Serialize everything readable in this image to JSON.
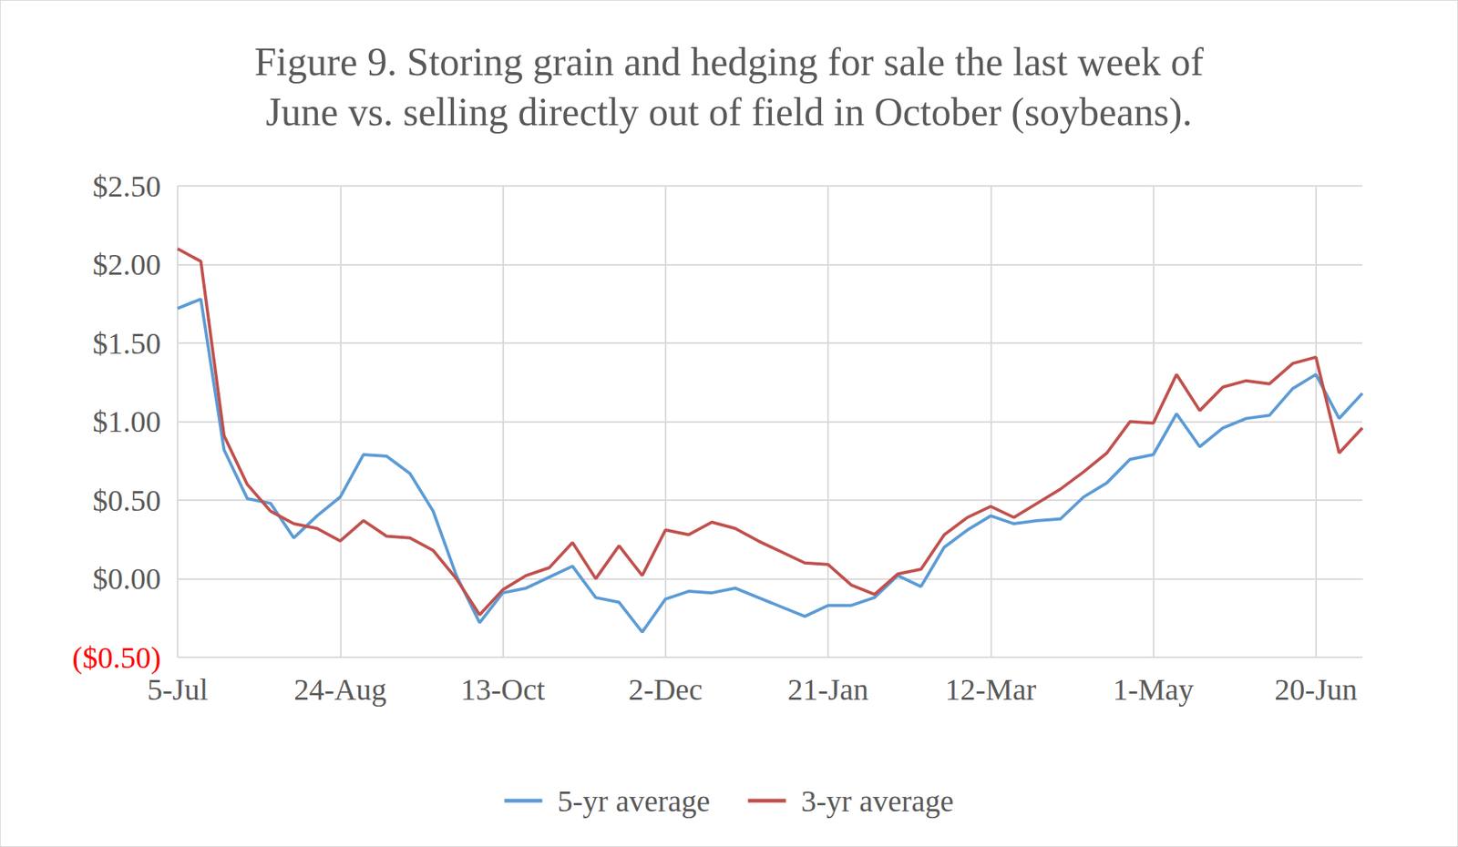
{
  "chart_data": {
    "type": "line",
    "title": "Figure 9. Storing grain and hedging for sale the last week of\nJune vs. selling directly out of field in October (soybeans).",
    "categories": [
      "5-Jul",
      null,
      null,
      null,
      null,
      null,
      null,
      "24-Aug",
      null,
      null,
      null,
      null,
      null,
      null,
      "13-Oct",
      null,
      null,
      null,
      null,
      null,
      null,
      "2-Dec",
      null,
      null,
      null,
      null,
      null,
      null,
      "21-Jan",
      null,
      null,
      null,
      null,
      null,
      null,
      "12-Mar",
      null,
      null,
      null,
      null,
      null,
      null,
      "1-May",
      null,
      null,
      null,
      null,
      null,
      null,
      "20-Jun",
      null,
      null
    ],
    "series": [
      {
        "name": "5-yr average",
        "color": "#5b9bd5",
        "values": [
          1.72,
          1.78,
          0.82,
          0.51,
          0.48,
          0.26,
          0.4,
          0.52,
          0.79,
          0.78,
          0.67,
          0.43,
          0.02,
          -0.28,
          -0.09,
          -0.06,
          0.01,
          0.08,
          -0.12,
          -0.15,
          -0.34,
          -0.13,
          -0.08,
          -0.09,
          -0.06,
          -0.12,
          -0.18,
          -0.24,
          -0.17,
          -0.17,
          -0.12,
          0.02,
          -0.05,
          0.2,
          0.31,
          0.4,
          0.35,
          0.37,
          0.38,
          0.52,
          0.61,
          0.76,
          0.79,
          1.05,
          0.84,
          0.96,
          1.02,
          1.04,
          1.21,
          1.3,
          1.02,
          1.18
        ]
      },
      {
        "name": "3-yr average",
        "color": "#c0504d",
        "values": [
          2.1,
          2.02,
          0.91,
          0.6,
          0.43,
          0.35,
          0.32,
          0.24,
          0.37,
          0.27,
          0.26,
          0.18,
          0.0,
          -0.23,
          -0.07,
          0.02,
          0.07,
          0.23,
          0.0,
          0.21,
          0.02,
          0.31,
          0.28,
          0.36,
          0.32,
          0.24,
          0.17,
          0.1,
          0.09,
          -0.04,
          -0.1,
          0.03,
          0.06,
          0.28,
          0.39,
          0.46,
          0.39,
          0.48,
          0.57,
          0.68,
          0.8,
          1.0,
          0.99,
          1.3,
          1.07,
          1.22,
          1.26,
          1.24,
          1.37,
          1.41,
          0.8,
          0.96
        ]
      }
    ],
    "ylim": [
      -0.5,
      2.5
    ],
    "yticks": [
      {
        "value": -0.5,
        "label": "($0.50)"
      },
      {
        "value": 0,
        "label": "$0.00"
      },
      {
        "value": 0.5,
        "label": "$0.50"
      },
      {
        "value": 1,
        "label": "$1.00"
      },
      {
        "value": 1.5,
        "label": "$1.50"
      },
      {
        "value": 2,
        "label": "$2.00"
      },
      {
        "value": 2.5,
        "label": "$2.50"
      }
    ],
    "grid": true,
    "legend": "bottom"
  }
}
